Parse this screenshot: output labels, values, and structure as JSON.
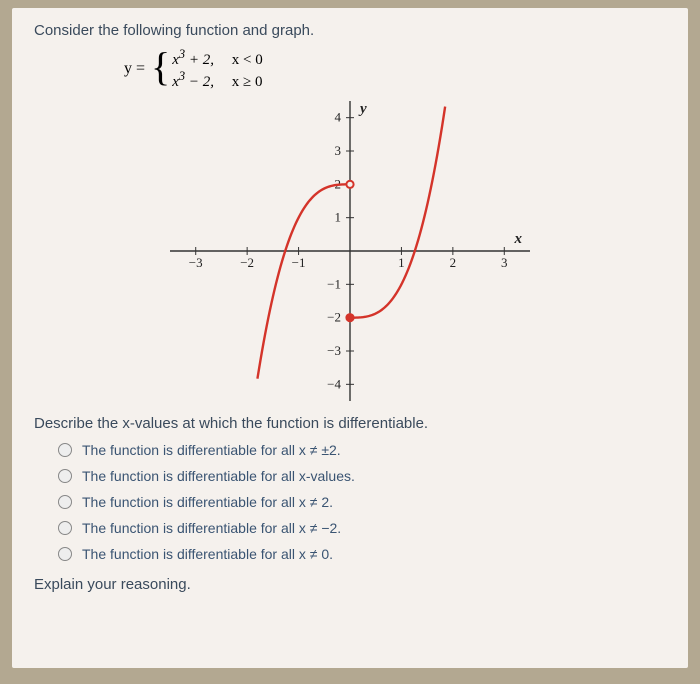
{
  "prompt_text": "Consider the following function and graph.",
  "equation": {
    "lhs": "y =",
    "case1_expr": "x",
    "case1_sup": "3",
    "case1_rest": " + 2,",
    "case1_cond": "x < 0",
    "case2_expr": "x",
    "case2_sup": "3",
    "case2_rest": " − 2,",
    "case2_cond": "x ≥ 0"
  },
  "chart": {
    "type": "line",
    "xlim": [
      -3.5,
      3.5
    ],
    "ylim": [
      -4.5,
      4.5
    ],
    "xticks": [
      -3,
      -2,
      -1,
      1,
      2,
      3
    ],
    "yticks": [
      -4,
      -3,
      -2,
      -1,
      1,
      2,
      3,
      4
    ],
    "x_axis_label": "x",
    "y_axis_label": "y",
    "curve_color": "#d4342a",
    "axis_color": "#333333",
    "open_point_fill": "#f5f1ed",
    "jump_points": [
      {
        "x": 0,
        "y": 2,
        "type": "open"
      },
      {
        "x": 0,
        "y": -2,
        "type": "closed"
      }
    ],
    "piece1": {
      "domain": [
        -1.8,
        0
      ],
      "formula": "x^3+2"
    },
    "piece2": {
      "domain": [
        0,
        1.85
      ],
      "formula": "x^3-2"
    }
  },
  "question_text": "Describe the x-values at which the function is differentiable.",
  "options": {
    "opt0": "The function is differentiable for all x ≠ ±2.",
    "opt1": "The function is differentiable for all x-values.",
    "opt2": "The function is differentiable for all x ≠ 2.",
    "opt3": "The function is differentiable for all x ≠ −2.",
    "opt4": "The function is differentiable for all x ≠ 0."
  },
  "explain_text": "Explain your reasoning."
}
